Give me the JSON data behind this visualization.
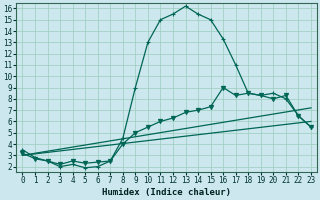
{
  "xlabel": "Humidex (Indice chaleur)",
  "bg_color": "#cce8ee",
  "grid_color": "#99ccbb",
  "line_color": "#006655",
  "xlim": [
    -0.5,
    23.5
  ],
  "ylim": [
    1.5,
    16.5
  ],
  "xticks": [
    0,
    1,
    2,
    3,
    4,
    5,
    6,
    7,
    8,
    9,
    10,
    11,
    12,
    13,
    14,
    15,
    16,
    17,
    18,
    19,
    20,
    21,
    22,
    23
  ],
  "yticks": [
    2,
    3,
    4,
    5,
    6,
    7,
    8,
    9,
    10,
    11,
    12,
    13,
    14,
    15,
    16
  ],
  "series": [
    {
      "x": [
        0,
        1,
        2,
        3,
        4,
        5,
        6,
        7,
        8,
        9,
        10,
        11,
        12,
        13,
        14,
        15,
        16,
        17,
        18,
        19,
        20,
        21,
        22,
        23
      ],
      "y": [
        3.5,
        2.8,
        2.5,
        2.0,
        2.2,
        1.9,
        2.0,
        2.5,
        4.5,
        9.0,
        13.0,
        15.0,
        15.5,
        16.2,
        15.5,
        15.0,
        13.3,
        11.0,
        8.5,
        8.3,
        8.5,
        8.0,
        6.5,
        5.5
      ],
      "marker": "+",
      "lw": 0.9
    },
    {
      "x": [
        0,
        23
      ],
      "y": [
        3.0,
        7.2
      ],
      "marker": null,
      "lw": 0.9
    },
    {
      "x": [
        0,
        23
      ],
      "y": [
        3.0,
        6.0
      ],
      "marker": null,
      "lw": 0.9
    },
    {
      "x": [
        0,
        1,
        2,
        3,
        4,
        5,
        6,
        7,
        8,
        9,
        10,
        11,
        12,
        13,
        14,
        15,
        16,
        17,
        18,
        19,
        20,
        21,
        22,
        23
      ],
      "y": [
        3.2,
        2.7,
        2.5,
        2.2,
        2.5,
        2.3,
        2.4,
        2.5,
        4.0,
        5.0,
        5.5,
        6.0,
        6.3,
        6.8,
        7.0,
        7.3,
        9.0,
        8.3,
        8.5,
        8.3,
        8.0,
        8.3,
        6.5,
        5.5
      ],
      "marker": "v",
      "lw": 0.9
    }
  ],
  "tick_fontsize": 5.5,
  "xlabel_fontsize": 6.5
}
